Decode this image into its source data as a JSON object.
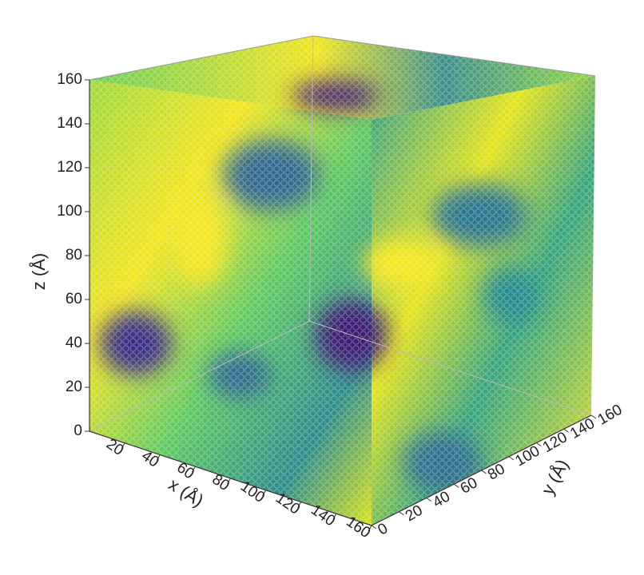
{
  "chart_data": {
    "type": "scatter3d",
    "x_label": "x (Å)",
    "y_label": "y (Å)",
    "z_label": "z (Å)",
    "xlim": [
      0,
      160
    ],
    "ylim": [
      0,
      160
    ],
    "zlim": [
      0,
      160
    ],
    "xticks": [
      20,
      40,
      60,
      80,
      100,
      120,
      140,
      160
    ],
    "yticks": [
      0,
      20,
      40,
      60,
      80,
      100,
      120,
      140,
      160
    ],
    "zticks": [
      0,
      20,
      40,
      60,
      80,
      100,
      120,
      140,
      160
    ],
    "box": true
  }
}
